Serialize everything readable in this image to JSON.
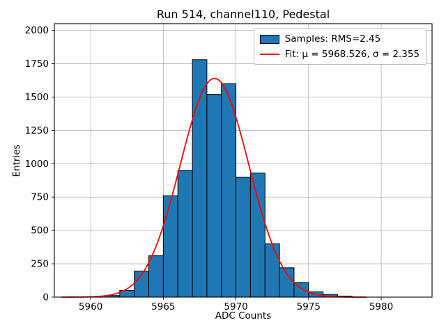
{
  "title": "Run 514, channel110, Pedestal",
  "xlabel": "ADC Counts",
  "ylabel": "Entries",
  "legend": {
    "samples_label": "Samples: RMS=2.45",
    "fit_label": "Fit: μ = 5968.526, σ = 2.355"
  },
  "colors": {
    "bar_fill": "#1f77b4",
    "bar_edge": "#000000",
    "fit_line": "#ff0000",
    "grid": "#b0b0b0",
    "spine": "#000000"
  },
  "chart_data": {
    "type": "bar",
    "subtype": "histogram_with_gaussian_fit",
    "title": "Run 514, channel110, Pedestal",
    "xlabel": "ADC Counts",
    "ylabel": "Entries",
    "bin_width": 1,
    "bin_left_edges": [
      5961,
      5962,
      5963,
      5964,
      5965,
      5966,
      5967,
      5968,
      5969,
      5970,
      5971,
      5972,
      5973,
      5974,
      5975,
      5976,
      5977
    ],
    "counts": [
      12,
      50,
      195,
      310,
      760,
      950,
      1780,
      1520,
      1600,
      900,
      930,
      400,
      220,
      110,
      40,
      20,
      8
    ],
    "rms": 2.45,
    "fit": {
      "mu": 5968.526,
      "sigma": 2.355,
      "amplitude": 1640,
      "x_range": [
        5958,
        5979
      ]
    },
    "xlim": [
      5957.5,
      5983.5
    ],
    "ylim": [
      0,
      2050
    ],
    "x_ticks": [
      5960,
      5965,
      5970,
      5975,
      5980
    ],
    "y_ticks": [
      0,
      250,
      500,
      750,
      1000,
      1250,
      1500,
      1750,
      2000
    ],
    "grid": true,
    "legend_position": "upper right"
  }
}
